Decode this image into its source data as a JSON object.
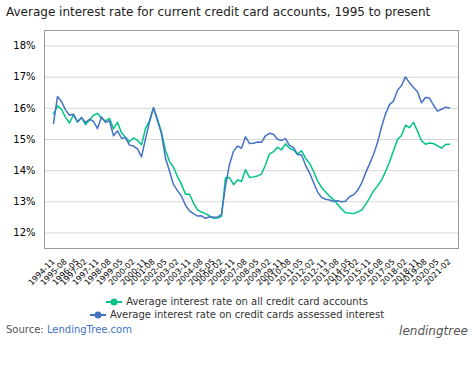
{
  "chart_data": {
    "type": "line",
    "title": "Average interest rate for current credit card accounts, 1995 to present",
    "categories": [
      "1994-11",
      null,
      null,
      "1995-08",
      null,
      null,
      "1996-05",
      null,
      "1997-02",
      null,
      null,
      "1997-11",
      null,
      null,
      "1998-08",
      null,
      null,
      "1999-05",
      null,
      null,
      "2000-02",
      null,
      null,
      "2000-11",
      null,
      "2001-08",
      null,
      null,
      "2002-05",
      null,
      null,
      "2003-02",
      null,
      null,
      "2003-11",
      null,
      null,
      "2004-08",
      null,
      null,
      "2005-05",
      null,
      "2006-02",
      null,
      null,
      "2006-11",
      null,
      null,
      "2007-08",
      null,
      null,
      "2008-05",
      null,
      null,
      "2009-02",
      null,
      null,
      "2009-11",
      null,
      "2010-08",
      null,
      null,
      "2011-05",
      null,
      null,
      "2012-02",
      null,
      null,
      "2012-11",
      null,
      null,
      "2013-08",
      null,
      null,
      "2014-05",
      null,
      "2015-02",
      null,
      null,
      "2015-11",
      null,
      null,
      "2016-08",
      null,
      null,
      "2017-05",
      null,
      null,
      "2018-02",
      null,
      null,
      "2018-11",
      null,
      "2019-08",
      null,
      null,
      "2020-05",
      null,
      null,
      "2021-02"
    ],
    "series": [
      {
        "name": "Average interest rate on all credit card accounts",
        "color": "#00c389",
        "values": [
          15.82,
          16.08,
          15.97,
          15.71,
          15.53,
          15.8,
          15.56,
          15.71,
          15.48,
          15.62,
          15.78,
          15.84,
          15.68,
          15.6,
          15.68,
          15.34,
          15.55,
          15.22,
          15.07,
          14.93,
          15.05,
          14.97,
          14.83,
          15.35,
          15.6,
          16.01,
          15.65,
          15.23,
          14.65,
          14.3,
          14.11,
          13.81,
          13.56,
          13.24,
          13.24,
          12.96,
          12.74,
          12.67,
          12.62,
          12.55,
          12.47,
          12.48,
          12.53,
          13.77,
          13.78,
          13.55,
          13.7,
          13.66,
          14.03,
          13.78,
          13.8,
          13.83,
          13.89,
          14.19,
          14.54,
          14.61,
          14.75,
          14.67,
          14.86,
          14.72,
          14.66,
          14.53,
          14.64,
          14.4,
          14.24,
          13.98,
          13.68,
          13.46,
          13.32,
          13.18,
          13.07,
          12.92,
          12.77,
          12.65,
          12.64,
          12.62,
          12.67,
          12.73,
          12.91,
          13.12,
          13.35,
          13.51,
          13.69,
          13.97,
          14.28,
          14.64,
          15.0,
          15.13,
          15.46,
          15.38,
          15.55,
          15.27,
          14.96,
          14.85,
          14.89,
          14.87,
          14.8,
          14.72,
          14.84,
          14.85
        ]
      },
      {
        "name": "Average interest rate on credit cards assessed interest",
        "color": "#4472c4",
        "values": [
          15.52,
          16.38,
          16.22,
          15.95,
          15.78,
          15.81,
          15.57,
          15.7,
          15.55,
          15.65,
          15.58,
          15.35,
          15.72,
          15.55,
          15.6,
          15.12,
          15.28,
          15.04,
          15.06,
          14.82,
          14.79,
          14.7,
          14.44,
          15.02,
          15.56,
          16.03,
          15.6,
          15.18,
          14.4,
          13.99,
          13.55,
          13.36,
          13.18,
          12.89,
          12.71,
          12.62,
          12.54,
          12.55,
          12.47,
          12.52,
          12.5,
          12.51,
          12.6,
          13.51,
          14.2,
          14.62,
          14.79,
          14.72,
          15.09,
          14.87,
          14.88,
          14.92,
          14.91,
          15.12,
          15.2,
          15.17,
          15.01,
          14.97,
          15.03,
          14.81,
          14.74,
          14.52,
          14.5,
          14.18,
          13.93,
          13.62,
          13.32,
          13.14,
          13.08,
          13.06,
          13.02,
          13.03,
          13.0,
          13.02,
          13.16,
          13.22,
          13.36,
          13.59,
          13.92,
          14.21,
          14.52,
          14.9,
          15.4,
          15.82,
          16.12,
          16.23,
          16.58,
          16.73,
          17.01,
          16.82,
          16.67,
          16.53,
          16.18,
          16.35,
          16.33,
          16.1,
          15.91,
          15.97,
          16.04,
          16.01
        ]
      }
    ],
    "ylim": [
      11.5,
      18.5
    ],
    "yticks": [
      {
        "value": 12,
        "label": "12%"
      },
      {
        "value": 13,
        "label": "13%"
      },
      {
        "value": 14,
        "label": "14%"
      },
      {
        "value": 15,
        "label": "15%"
      },
      {
        "value": 16,
        "label": "16%"
      },
      {
        "value": 17,
        "label": "17%"
      },
      {
        "value": 18,
        "label": "18%"
      }
    ],
    "grid": true,
    "legend": "bottom",
    "annotations": [
      "Source: ",
      "LendingTree.com",
      "lendingtree"
    ]
  }
}
